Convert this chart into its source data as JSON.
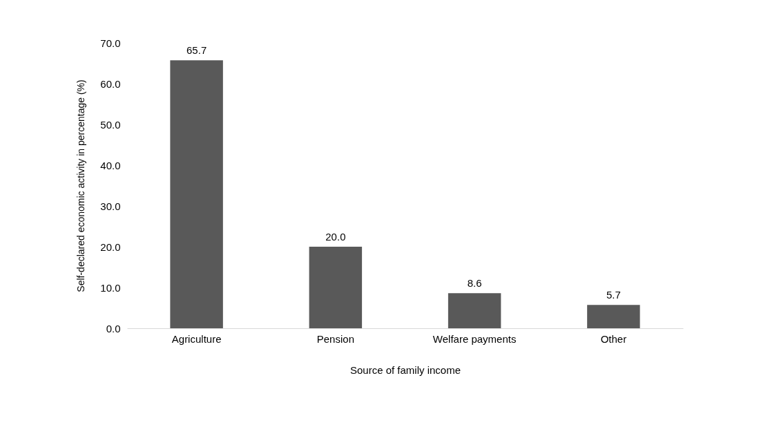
{
  "chart_data": {
    "type": "bar",
    "categories": [
      "Agriculture",
      "Pension",
      "Welfare payments",
      "Other"
    ],
    "values": [
      65.7,
      20.0,
      8.6,
      5.7
    ],
    "value_labels": [
      "65.7",
      "20.0",
      "8.6",
      "5.7"
    ],
    "color": "#595959",
    "xlabel": "Source of family income",
    "ylabel": "Self-declared economic activity in percentage (%)",
    "ylim": [
      0,
      70
    ],
    "yticks": [
      {
        "value": 0,
        "label": "0.0"
      },
      {
        "value": 10,
        "label": "10.0"
      },
      {
        "value": 20,
        "label": "20.0"
      },
      {
        "value": 30,
        "label": "30.0"
      },
      {
        "value": 40,
        "label": "40.0"
      },
      {
        "value": 50,
        "label": "50.0"
      },
      {
        "value": 60,
        "label": "60.0"
      },
      {
        "value": 70,
        "label": "70.0"
      }
    ],
    "grid": false
  }
}
